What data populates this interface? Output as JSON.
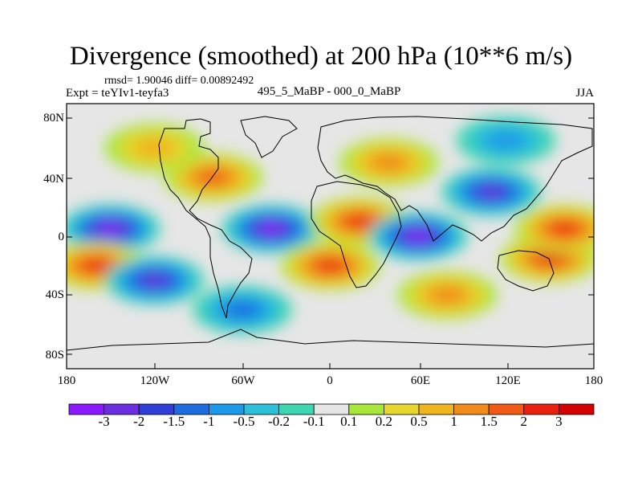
{
  "title": "Divergence (smoothed) at 200 hPa (10**6 m/s)",
  "stats": "rmsd= 1.90046 diff= 0.00892492",
  "experiment": "Expt = teYIv1-teyfa3",
  "comparison": "495_5_MaBP - 000_0_MaBP",
  "season": "JJA",
  "latitude_labels": [
    "80N",
    "40N",
    "0",
    "40S",
    "80S"
  ],
  "longitude_labels": [
    "180",
    "120W",
    "60W",
    "0",
    "60E",
    "120E",
    "180"
  ],
  "colorbar": {
    "labels": [
      "-3",
      "-2",
      "-1.5",
      "-1",
      "-0.5",
      "-0.2",
      "-0.1",
      "0.1",
      "0.2",
      "0.5",
      "1",
      "1.5",
      "2",
      "3"
    ],
    "colors": [
      "#8b19ff",
      "#6a2ee0",
      "#2f3fd8",
      "#1d6de0",
      "#1a9ae8",
      "#2bbfd8",
      "#3ed6b0",
      "#e6e6e6",
      "#a8e63a",
      "#e6d62e",
      "#f0b41e",
      "#f08a1a",
      "#f05a14",
      "#e8200e",
      "#d40000"
    ]
  },
  "chart_data": {
    "type": "heatmap",
    "title": "Divergence (smoothed) at 200 hPa (10**6 m/s)",
    "field": "divergence anomaly",
    "units": "10**6 m/s",
    "xlim": [
      -180,
      180
    ],
    "ylim": [
      -90,
      90
    ],
    "levels": [
      -3,
      -2,
      -1.5,
      -1,
      -0.5,
      -0.2,
      -0.1,
      0.1,
      0.2,
      0.5,
      1,
      1.5,
      2,
      3
    ],
    "features": [
      {
        "lon": -150,
        "lat": 5,
        "value": -3.2
      },
      {
        "lon": -160,
        "lat": -20,
        "value": 2.5
      },
      {
        "lon": -80,
        "lat": 40,
        "value": 1.6
      },
      {
        "lon": -40,
        "lat": 5,
        "value": -3.1
      },
      {
        "lon": 20,
        "lat": 10,
        "value": 2.4
      },
      {
        "lon": 60,
        "lat": 0,
        "value": -3.3
      },
      {
        "lon": 110,
        "lat": 30,
        "value": -2.4
      },
      {
        "lon": 150,
        "lat": -15,
        "value": 2.8
      },
      {
        "lon": 0,
        "lat": -20,
        "value": 2.2
      },
      {
        "lon": -120,
        "lat": 60,
        "value": 0.8
      },
      {
        "lon": 40,
        "lat": 50,
        "value": 1.4
      },
      {
        "lon": 160,
        "lat": 5,
        "value": 2.6
      },
      {
        "lon": -60,
        "lat": -50,
        "value": -1.2
      },
      {
        "lon": 80,
        "lat": -40,
        "value": 1.1
      },
      {
        "lon": -120,
        "lat": -30,
        "value": -2.0
      },
      {
        "lon": 120,
        "lat": 65,
        "value": -0.6
      }
    ]
  }
}
